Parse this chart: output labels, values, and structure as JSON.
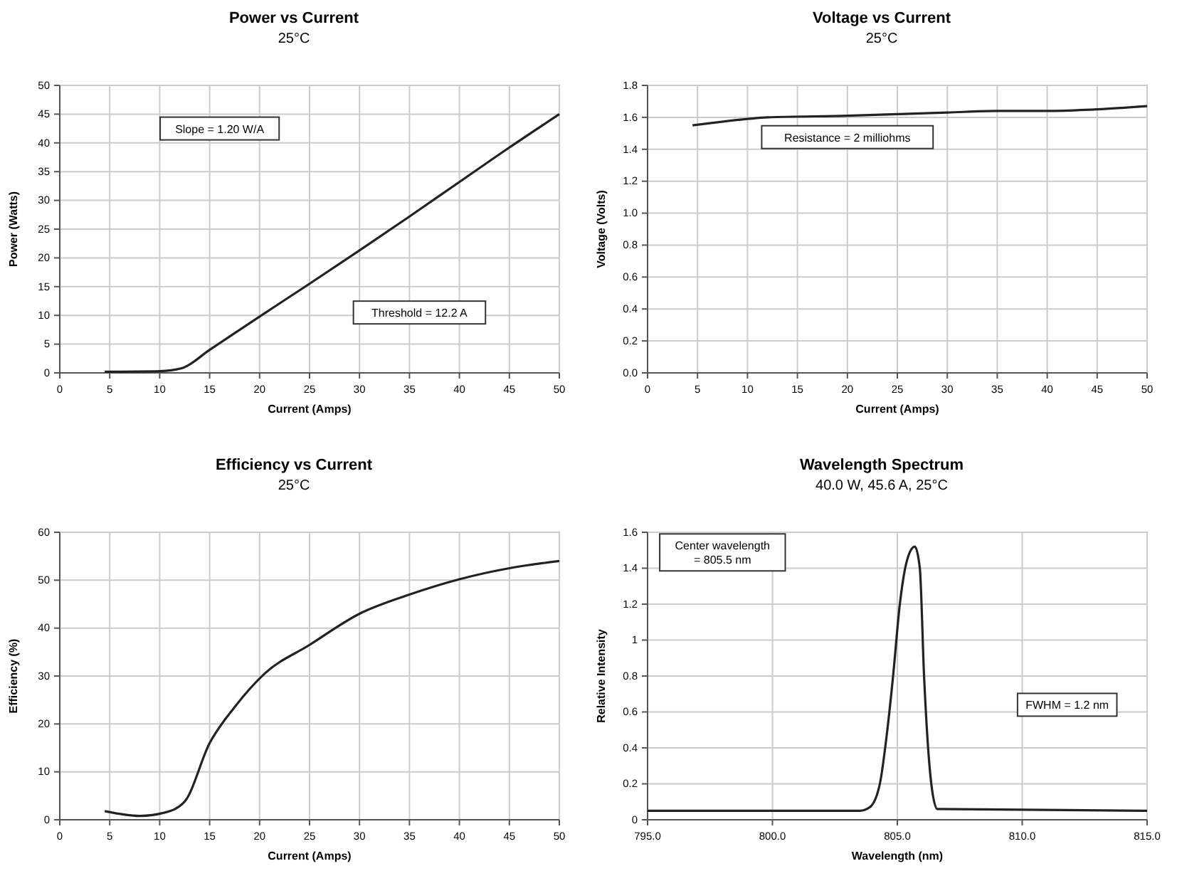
{
  "chart_data": [
    {
      "type": "line",
      "title": "Power vs Current",
      "subtitle": "25°C",
      "xlabel": "Current (Amps)",
      "ylabel": "Power (Watts)",
      "xlim": [
        0,
        50
      ],
      "xticks": [
        0,
        5,
        10,
        15,
        20,
        25,
        30,
        35,
        40,
        45,
        50
      ],
      "ylim": [
        0,
        50
      ],
      "yticks": [
        0,
        5,
        10,
        15,
        20,
        25,
        30,
        35,
        40,
        45,
        50
      ],
      "grid": true,
      "annotations": [
        "Slope = 1.20 W/A",
        "Threshold = 12.2 A"
      ],
      "series": [
        {
          "color": "#222222",
          "x": [
            4.5,
            10,
            12.2,
            15,
            20,
            25,
            30,
            35,
            40,
            45,
            50
          ],
          "values": [
            0.2,
            0.3,
            0.8,
            4,
            9.8,
            15.5,
            21.3,
            27.2,
            33.2,
            39.2,
            45
          ]
        }
      ]
    },
    {
      "type": "line",
      "title": "Voltage vs Current",
      "subtitle": "25°C",
      "xlabel": "Current (Amps)",
      "ylabel": "Voltage (Volts)",
      "xlim": [
        0,
        50
      ],
      "xticks": [
        0,
        5,
        10,
        15,
        20,
        25,
        30,
        35,
        40,
        45,
        50
      ],
      "ylim": [
        0,
        1.8
      ],
      "yticks": [
        {
          "value": 0,
          "label": "0.0"
        },
        0.2,
        0.4,
        0.6,
        0.8,
        {
          "value": 1,
          "label": "1.0"
        },
        1.2,
        1.4,
        1.6,
        1.8
      ],
      "grid": true,
      "annotations": [
        "Resistance = 2 milliohms"
      ],
      "series": [
        {
          "color": "#222222",
          "x": [
            4.5,
            10,
            12,
            20,
            25,
            30,
            35,
            40,
            45,
            50
          ],
          "values": [
            1.55,
            1.59,
            1.6,
            1.61,
            1.62,
            1.63,
            1.64,
            1.64,
            1.65,
            1.67
          ]
        }
      ]
    },
    {
      "type": "line",
      "title": "Efficiency vs Current",
      "subtitle": "25°C",
      "xlabel": "Current (Amps)",
      "ylabel": "Efficiency (%)",
      "xlim": [
        0,
        50
      ],
      "xticks": [
        0,
        5,
        10,
        15,
        20,
        25,
        30,
        35,
        40,
        45,
        50
      ],
      "ylim": [
        0,
        60
      ],
      "yticks": [
        0,
        10,
        20,
        30,
        40,
        50,
        60
      ],
      "grid": true,
      "series": [
        {
          "color": "#222222",
          "x": [
            4.5,
            8,
            10.5,
            12.5,
            15,
            17.5,
            20.5,
            25,
            30,
            35,
            40,
            45,
            50
          ],
          "values": [
            1.8,
            0.8,
            1.5,
            3.8,
            16,
            23.5,
            30.5,
            36.5,
            43,
            47,
            50.2,
            52.5,
            54
          ]
        }
      ]
    },
    {
      "type": "line",
      "title": "Wavelength Spectrum",
      "subtitle": "40.0 W, 45.6 A, 25°C",
      "xlabel": "Wavelength (nm)",
      "ylabel": "Relative Intensity",
      "xlim": [
        795,
        815
      ],
      "xticks": [
        {
          "value": 795,
          "label": "795.0"
        },
        {
          "value": 800,
          "label": "800.0"
        },
        {
          "value": 805,
          "label": "805.0"
        },
        {
          "value": 810,
          "label": "810.0"
        },
        {
          "value": 815,
          "label": "815.0"
        }
      ],
      "ylim": [
        0,
        1.6
      ],
      "yticks": [
        0,
        0.2,
        0.4,
        0.6,
        0.8,
        1,
        1.2,
        1.4,
        1.6
      ],
      "grid": true,
      "annotations": [
        "Center wavelength\n= 805.5 nm",
        "FWHM = 1.2 nm"
      ],
      "series": [
        {
          "color": "#222222",
          "x": [
            795,
            803.5,
            803.9,
            804.3,
            804.6,
            804.83,
            805.1,
            805.4,
            805.7,
            805.9,
            806.07,
            806.36,
            806.6,
            815
          ],
          "values": [
            0.05,
            0.05,
            0.07,
            0.2,
            0.5,
            0.8,
            1.2,
            1.45,
            1.52,
            1.4,
            0.8,
            0.2,
            0.06,
            0.05
          ]
        }
      ]
    }
  ]
}
